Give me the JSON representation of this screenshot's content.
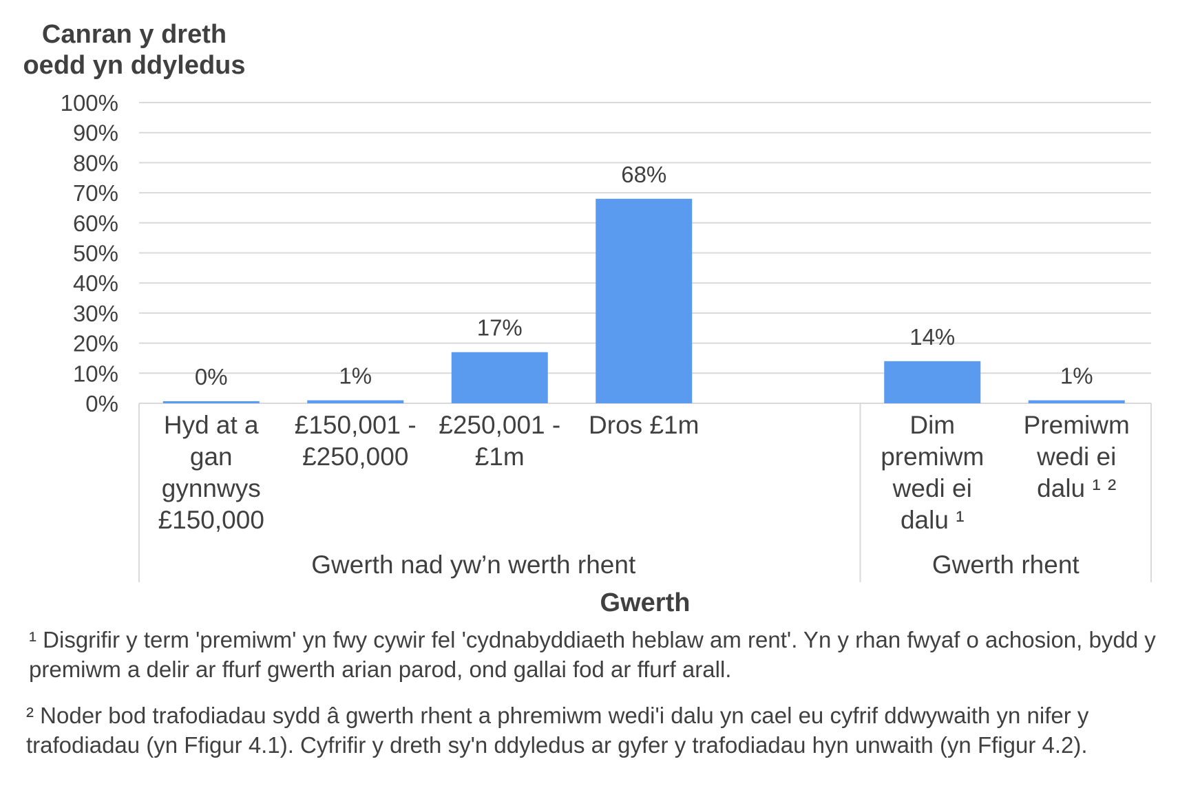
{
  "chart_data": {
    "type": "bar",
    "ylabel": "Canran y dreth oedd yn ddyledus",
    "xlabel": "Gwerth",
    "ylim": [
      0,
      100
    ],
    "yticks": [
      "0%",
      "10%",
      "20%",
      "30%",
      "40%",
      "50%",
      "60%",
      "70%",
      "80%",
      "90%",
      "100%"
    ],
    "grid": true,
    "color": "#5B9BEF",
    "groups": [
      {
        "name": "Gwerth nad yw’n werth rhent",
        "categories": [
          {
            "label": [
              "Hyd at a",
              "gan",
              "gynnwys",
              "£150,000"
            ],
            "value": 0,
            "data_label": "0%"
          },
          {
            "label": [
              "£150,001 -",
              "£250,000"
            ],
            "value": 1,
            "data_label": "1%"
          },
          {
            "label": [
              "£250,001 -",
              "£1m"
            ],
            "value": 17,
            "data_label": "17%"
          },
          {
            "label": [
              "Dros £1m"
            ],
            "value": 68,
            "data_label": "68%"
          }
        ]
      },
      {
        "name": "Gwerth rhent",
        "categories": [
          {
            "label": [
              "Dim",
              "premiwm",
              "wedi ei",
              "dalu ¹"
            ],
            "value": 14,
            "data_label": "14%"
          },
          {
            "label": [
              "Premiwm",
              "wedi ei",
              "dalu ¹ ²"
            ],
            "value": 1,
            "data_label": "1%"
          }
        ]
      }
    ]
  },
  "footnotes": {
    "fn1": "¹ Disgrifir y term 'premiwm' yn fwy cywir fel 'cydnabyddiaeth heblaw am rent'. Yn y rhan fwyaf o achosion, bydd y premiwm a delir ar ffurf gwerth arian parod, ond gallai fod ar ffurf arall.",
    "fn2": "² Noder bod trafodiadau sydd â gwerth rhent a phremiwm wedi'i dalu yn cael eu cyfrif ddwywaith yn nifer y trafodiadau (yn Ffigur 4.1). Cyfrifir y dreth sy'n ddyledus ar gyfer y trafodiadau hyn unwaith (yn Ffigur 4.2)."
  }
}
